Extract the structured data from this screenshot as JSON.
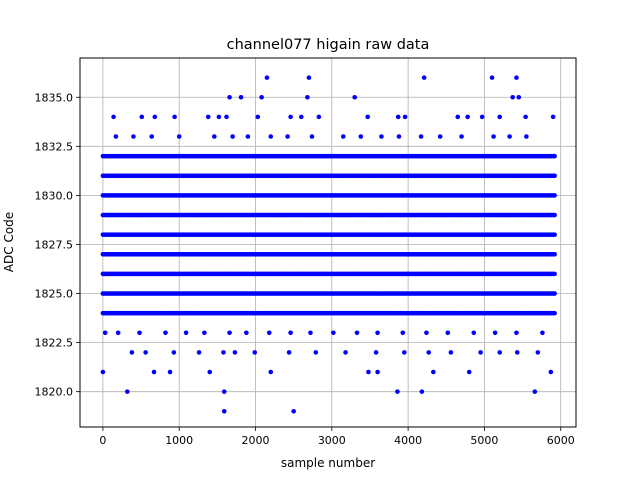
{
  "chart_data": {
    "type": "scatter",
    "title": "channel077 higain raw data",
    "xlabel": "sample number",
    "ylabel": "ADC Code",
    "xlim": [
      -300,
      6200
    ],
    "ylim": [
      1818.2,
      1837.0
    ],
    "x_ticks": [
      0,
      1000,
      2000,
      3000,
      4000,
      5000,
      6000
    ],
    "y_ticks": [
      1820.0,
      1822.5,
      1825.0,
      1827.5,
      1830.0,
      1832.5,
      1835.0
    ],
    "x_tick_labels": [
      "0",
      "1000",
      "2000",
      "3000",
      "4000",
      "5000",
      "6000"
    ],
    "y_tick_labels": [
      "1820.0",
      "1822.5",
      "1825.0",
      "1827.5",
      "1830.0",
      "1832.5",
      "1835.0"
    ],
    "grid": true,
    "marker_color": "#0000ff",
    "series": [
      {
        "points": [
          {
            "x": 0,
            "y": 1821
          },
          {
            "x": 320,
            "y": 1820
          },
          {
            "x": 1590,
            "y": 1819
          },
          {
            "x": 1590,
            "y": 1820
          },
          {
            "x": 2500,
            "y": 1819
          },
          {
            "x": 3860,
            "y": 1820
          },
          {
            "x": 4180,
            "y": 1820
          },
          {
            "x": 5660,
            "y": 1820
          },
          {
            "x": 670,
            "y": 1821
          },
          {
            "x": 880,
            "y": 1821
          },
          {
            "x": 1400,
            "y": 1821
          },
          {
            "x": 2200,
            "y": 1821
          },
          {
            "x": 3480,
            "y": 1821
          },
          {
            "x": 3600,
            "y": 1821
          },
          {
            "x": 4330,
            "y": 1821
          },
          {
            "x": 4800,
            "y": 1821
          },
          {
            "x": 5870,
            "y": 1821
          },
          {
            "x": 2150,
            "y": 1836
          },
          {
            "x": 2700,
            "y": 1836
          },
          {
            "x": 4210,
            "y": 1836
          },
          {
            "x": 5100,
            "y": 1836
          },
          {
            "x": 5420,
            "y": 1836
          },
          {
            "x": 1660,
            "y": 1835
          },
          {
            "x": 1810,
            "y": 1835
          },
          {
            "x": 2080,
            "y": 1835
          },
          {
            "x": 2680,
            "y": 1835
          },
          {
            "x": 3300,
            "y": 1835
          },
          {
            "x": 5370,
            "y": 1835
          },
          {
            "x": 5450,
            "y": 1835
          },
          {
            "x": 140,
            "y": 1834
          },
          {
            "x": 510,
            "y": 1834
          },
          {
            "x": 680,
            "y": 1834
          },
          {
            "x": 940,
            "y": 1834
          },
          {
            "x": 1380,
            "y": 1834
          },
          {
            "x": 1520,
            "y": 1834
          },
          {
            "x": 1620,
            "y": 1834
          },
          {
            "x": 2030,
            "y": 1834
          },
          {
            "x": 2460,
            "y": 1834
          },
          {
            "x": 2600,
            "y": 1834
          },
          {
            "x": 2830,
            "y": 1834
          },
          {
            "x": 3470,
            "y": 1834
          },
          {
            "x": 3870,
            "y": 1834
          },
          {
            "x": 3960,
            "y": 1834
          },
          {
            "x": 4650,
            "y": 1834
          },
          {
            "x": 4780,
            "y": 1834
          },
          {
            "x": 4970,
            "y": 1834
          },
          {
            "x": 5200,
            "y": 1834
          },
          {
            "x": 5540,
            "y": 1834
          },
          {
            "x": 5900,
            "y": 1834
          },
          {
            "x": 170,
            "y": 1833
          },
          {
            "x": 400,
            "y": 1833
          },
          {
            "x": 640,
            "y": 1833
          },
          {
            "x": 1000,
            "y": 1833
          },
          {
            "x": 1460,
            "y": 1833
          },
          {
            "x": 1700,
            "y": 1833
          },
          {
            "x": 1900,
            "y": 1833
          },
          {
            "x": 2200,
            "y": 1833
          },
          {
            "x": 2420,
            "y": 1833
          },
          {
            "x": 2740,
            "y": 1833
          },
          {
            "x": 3150,
            "y": 1833
          },
          {
            "x": 3380,
            "y": 1833
          },
          {
            "x": 3650,
            "y": 1833
          },
          {
            "x": 3880,
            "y": 1833
          },
          {
            "x": 4170,
            "y": 1833
          },
          {
            "x": 4420,
            "y": 1833
          },
          {
            "x": 4700,
            "y": 1833
          },
          {
            "x": 5120,
            "y": 1833
          },
          {
            "x": 5330,
            "y": 1833
          },
          {
            "x": 5550,
            "y": 1833
          },
          {
            "x": 30,
            "y": 1823
          },
          {
            "x": 200,
            "y": 1823
          },
          {
            "x": 480,
            "y": 1823
          },
          {
            "x": 820,
            "y": 1823
          },
          {
            "x": 1090,
            "y": 1823
          },
          {
            "x": 1330,
            "y": 1823
          },
          {
            "x": 1660,
            "y": 1823
          },
          {
            "x": 1880,
            "y": 1823
          },
          {
            "x": 2180,
            "y": 1823
          },
          {
            "x": 2460,
            "y": 1823
          },
          {
            "x": 2720,
            "y": 1823
          },
          {
            "x": 3020,
            "y": 1823
          },
          {
            "x": 3330,
            "y": 1823
          },
          {
            "x": 3600,
            "y": 1823
          },
          {
            "x": 3930,
            "y": 1823
          },
          {
            "x": 4240,
            "y": 1823
          },
          {
            "x": 4520,
            "y": 1823
          },
          {
            "x": 4860,
            "y": 1823
          },
          {
            "x": 5140,
            "y": 1823
          },
          {
            "x": 5420,
            "y": 1823
          },
          {
            "x": 5760,
            "y": 1823
          },
          {
            "x": 380,
            "y": 1822
          },
          {
            "x": 560,
            "y": 1822
          },
          {
            "x": 930,
            "y": 1822
          },
          {
            "x": 1260,
            "y": 1822
          },
          {
            "x": 1580,
            "y": 1822
          },
          {
            "x": 1730,
            "y": 1822
          },
          {
            "x": 1990,
            "y": 1822
          },
          {
            "x": 2440,
            "y": 1822
          },
          {
            "x": 2790,
            "y": 1822
          },
          {
            "x": 3180,
            "y": 1822
          },
          {
            "x": 3580,
            "y": 1822
          },
          {
            "x": 3950,
            "y": 1822
          },
          {
            "x": 4270,
            "y": 1822
          },
          {
            "x": 4560,
            "y": 1822
          },
          {
            "x": 4950,
            "y": 1822
          },
          {
            "x": 5200,
            "y": 1822
          },
          {
            "x": 5430,
            "y": 1822
          },
          {
            "x": 5700,
            "y": 1822
          }
        ],
        "bands": [
          {
            "y": 1824,
            "x_start": 0,
            "x_end": 5920
          },
          {
            "y": 1825,
            "x_start": 0,
            "x_end": 5920
          },
          {
            "y": 1826,
            "x_start": 0,
            "x_end": 5920
          },
          {
            "y": 1827,
            "x_start": 0,
            "x_end": 5920
          },
          {
            "y": 1828,
            "x_start": 0,
            "x_end": 5920
          },
          {
            "y": 1829,
            "x_start": 0,
            "x_end": 5920
          },
          {
            "y": 1830,
            "x_start": 0,
            "x_end": 5920
          },
          {
            "y": 1831,
            "x_start": 0,
            "x_end": 5920
          },
          {
            "y": 1832,
            "x_start": 0,
            "x_end": 5920
          }
        ]
      }
    ]
  }
}
